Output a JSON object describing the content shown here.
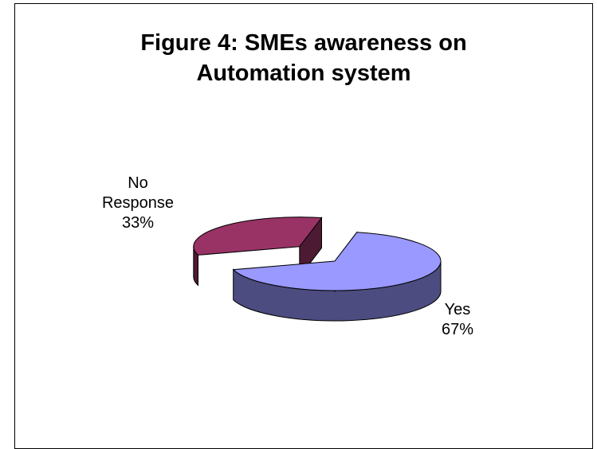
{
  "chart_data": {
    "type": "pie",
    "title_lines": [
      "Figure 4: SMEs awareness on",
      "Automation system"
    ],
    "slices": [
      {
        "label_lines": [
          "Yes"
        ],
        "value": 67,
        "value_text": "67%",
        "color": "#9999ff",
        "side_color": "#4c4c80"
      },
      {
        "label_lines": [
          "No",
          "Response"
        ],
        "value": 33,
        "value_text": "33%",
        "color": "#993366",
        "side_color": "#4d1a33"
      }
    ],
    "style": "3d-exploded",
    "legend": "none"
  }
}
